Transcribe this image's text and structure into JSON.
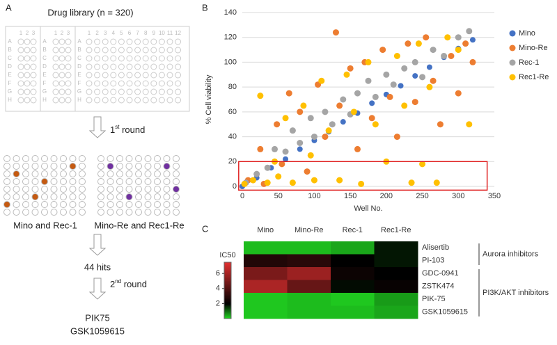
{
  "panel_a": {
    "label": "A",
    "title": "Drug library (n = 320)",
    "plate_columns": [
      [
        "1",
        "2",
        "3"
      ],
      [
        "1",
        "2",
        "3"
      ],
      [
        "1",
        "2",
        "3",
        "4",
        "5",
        "6",
        "7",
        "8",
        "9",
        "10",
        "11",
        "12"
      ]
    ],
    "plate_rows": [
      "A",
      "B",
      "C",
      "D",
      "E",
      "F",
      "G",
      "H"
    ],
    "round1": {
      "number": "1",
      "suffix": "st",
      "rest": " round"
    },
    "plate_labels": [
      "Mino and Rec-1",
      "Mino-Re and Rec1-Re"
    ],
    "hits": "44 hits",
    "round2": {
      "number": "2",
      "suffix": "nd",
      "rest": " round"
    },
    "results": [
      "PIK75",
      "GSK1059615"
    ]
  },
  "chart_data": [
    {
      "type": "scatter",
      "panel_label": "B",
      "xlabel": "Well No.",
      "ylabel": "% Cell viability",
      "xlim": [
        0,
        350
      ],
      "xticks": [
        0,
        50,
        100,
        150,
        200,
        250,
        300,
        350
      ],
      "ylim": [
        0,
        140
      ],
      "yticks": [
        0,
        20,
        40,
        60,
        80,
        100,
        120,
        140
      ],
      "grid": true,
      "legend": "right",
      "highlight_box": {
        "x": [
          -5,
          340
        ],
        "y": [
          -3,
          20
        ],
        "color": "#e02020"
      },
      "series": [
        {
          "name": "Mino",
          "color": "#4472c4",
          "x": [
            0,
            20,
            40,
            60,
            80,
            100,
            120,
            140,
            160,
            180,
            200,
            220,
            240,
            260,
            280,
            300,
            320
          ],
          "values": [
            0,
            7,
            15,
            22,
            30,
            37,
            44,
            52,
            59,
            67,
            74,
            81,
            89,
            96,
            104,
            111,
            118
          ]
        },
        {
          "name": "Mino-Re",
          "color": "#ed7d31",
          "x": [
            8,
            25,
            30,
            48,
            55,
            65,
            80,
            90,
            105,
            115,
            130,
            135,
            150,
            160,
            170,
            180,
            195,
            205,
            215,
            230,
            240,
            255,
            265,
            275,
            290,
            300,
            310,
            320
          ],
          "values": [
            5,
            30,
            2,
            50,
            18,
            75,
            60,
            12,
            82,
            40,
            124,
            65,
            95,
            30,
            100,
            55,
            110,
            72,
            40,
            115,
            68,
            120,
            85,
            50,
            105,
            75,
            115,
            100
          ]
        },
        {
          "name": "Rec-1",
          "color": "#a5a5a5",
          "x": [
            5,
            20,
            35,
            45,
            60,
            70,
            80,
            95,
            100,
            115,
            125,
            140,
            150,
            160,
            175,
            185,
            200,
            210,
            225,
            240,
            250,
            265,
            280,
            300,
            315
          ],
          "values": [
            3,
            10,
            15,
            30,
            28,
            45,
            35,
            55,
            40,
            60,
            50,
            70,
            58,
            75,
            85,
            72,
            90,
            82,
            95,
            100,
            88,
            110,
            105,
            120,
            125
          ]
        },
        {
          "name": "Rec1-Re",
          "color": "#ffc000",
          "x": [
            3,
            15,
            25,
            35,
            45,
            50,
            60,
            70,
            85,
            95,
            100,
            110,
            120,
            135,
            145,
            155,
            165,
            175,
            185,
            200,
            215,
            225,
            235,
            245,
            250,
            260,
            270,
            285,
            300,
            315
          ],
          "values": [
            2,
            5,
            73,
            3,
            20,
            8,
            55,
            3,
            65,
            25,
            5,
            85,
            45,
            5,
            90,
            60,
            2,
            100,
            50,
            20,
            105,
            65,
            3,
            115,
            18,
            80,
            3,
            120,
            110,
            50
          ]
        }
      ]
    },
    {
      "type": "heatmap",
      "panel_label": "C",
      "columns": [
        "Mino",
        "Mino-Re",
        "Rec-1",
        "Rec1-Re"
      ],
      "rows": [
        "Alisertib",
        "PI-103",
        "GDC-0941",
        "ZSTK474",
        "PIK-75",
        "GSK1059615"
      ],
      "values": [
        [
          0.3,
          0.3,
          0.5,
          1.8
        ],
        [
          2.8,
          3.0,
          2.0,
          1.8
        ],
        [
          5.0,
          5.8,
          2.3,
          2.0
        ],
        [
          6.2,
          4.5,
          1.9,
          2.2
        ],
        [
          0.2,
          0.3,
          0.2,
          0.6
        ],
        [
          0.2,
          0.3,
          0.3,
          0.5
        ]
      ],
      "groups": [
        {
          "label": "Aurora inhibitors",
          "rows": [
            0,
            1
          ]
        },
        {
          "label": "PI3K/AKT inhibitors",
          "rows": [
            2,
            5
          ]
        }
      ],
      "colorbar_title": "IC50",
      "clim": [
        0,
        7.5
      ],
      "cmid": 2,
      "colorbar_ticks": [
        2,
        4,
        6
      ],
      "low_color": "#22dd22",
      "mid_color": "#000000",
      "high_color": "#e03030"
    }
  ]
}
